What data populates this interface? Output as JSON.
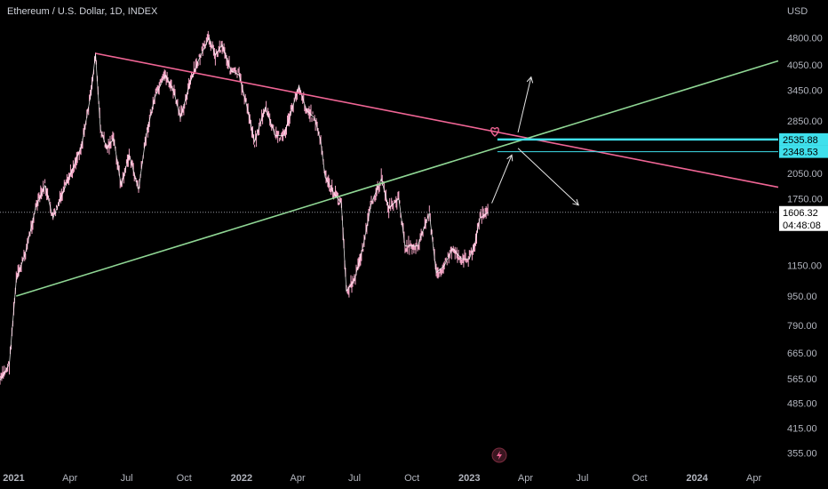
{
  "header": {
    "title": "Ethereum / U.S. Dollar, 1D, INDEX"
  },
  "chart_data": {
    "type": "candlestick",
    "currency_label": "USD",
    "y_scale": "log",
    "ylim": [
      335,
      5200
    ],
    "y_ticks": [
      4800,
      4050,
      3450,
      2850,
      2350,
      2050,
      1750,
      1150,
      950,
      790,
      665,
      565,
      485,
      415,
      355
    ],
    "y_tick_labels": [
      "4800.00",
      "4050.00",
      "3450.00",
      "2850.00",
      "2350.00",
      "2050.00",
      "1750.00",
      "1150.00",
      "950.00",
      "790.00",
      "665.00",
      "565.00",
      "485.00",
      "415.00",
      "355.00"
    ],
    "x_range": [
      "2020-12-10",
      "2024-05-10"
    ],
    "x_ticks": [
      {
        "date": "2021-01-01",
        "label": "2021",
        "bold": true
      },
      {
        "date": "2021-04-01",
        "label": "Apr",
        "bold": false
      },
      {
        "date": "2021-07-01",
        "label": "Jul",
        "bold": false
      },
      {
        "date": "2021-10-01",
        "label": "Oct",
        "bold": false
      },
      {
        "date": "2022-01-01",
        "label": "2022",
        "bold": true
      },
      {
        "date": "2022-04-01",
        "label": "Apr",
        "bold": false
      },
      {
        "date": "2022-07-01",
        "label": "Jul",
        "bold": false
      },
      {
        "date": "2022-10-01",
        "label": "Oct",
        "bold": false
      },
      {
        "date": "2023-01-01",
        "label": "2023",
        "bold": true
      },
      {
        "date": "2023-04-01",
        "label": "Apr",
        "bold": false
      },
      {
        "date": "2023-07-01",
        "label": "Jul",
        "bold": false
      },
      {
        "date": "2023-10-01",
        "label": "Oct",
        "bold": false
      },
      {
        "date": "2024-01-01",
        "label": "2024",
        "bold": true
      },
      {
        "date": "2024-04-01",
        "label": "Apr",
        "bold": false
      }
    ],
    "series": [
      {
        "type": "price_path",
        "values": [
          [
            "2020-12-10",
            560
          ],
          [
            "2020-12-25",
            620
          ],
          [
            "2021-01-05",
            1050
          ],
          [
            "2021-01-20",
            1250
          ],
          [
            "2021-02-05",
            1650
          ],
          [
            "2021-02-20",
            1900
          ],
          [
            "2021-03-05",
            1550
          ],
          [
            "2021-03-20",
            1800
          ],
          [
            "2021-04-05",
            2100
          ],
          [
            "2021-04-20",
            2450
          ],
          [
            "2021-05-05",
            3400
          ],
          [
            "2021-05-12",
            4350
          ],
          [
            "2021-05-20",
            2700
          ],
          [
            "2021-05-30",
            2400
          ],
          [
            "2021-06-10",
            2550
          ],
          [
            "2021-06-22",
            1900
          ],
          [
            "2021-07-05",
            2300
          ],
          [
            "2021-07-20",
            1850
          ],
          [
            "2021-08-01",
            2600
          ],
          [
            "2021-08-15",
            3300
          ],
          [
            "2021-09-01",
            3800
          ],
          [
            "2021-09-15",
            3400
          ],
          [
            "2021-09-25",
            2900
          ],
          [
            "2021-10-10",
            3600
          ],
          [
            "2021-10-25",
            4200
          ],
          [
            "2021-11-10",
            4800
          ],
          [
            "2021-11-20",
            4300
          ],
          [
            "2021-12-01",
            4600
          ],
          [
            "2021-12-15",
            3900
          ],
          [
            "2021-12-28",
            3800
          ],
          [
            "2022-01-10",
            3100
          ],
          [
            "2022-01-22",
            2500
          ],
          [
            "2022-02-08",
            3100
          ],
          [
            "2022-02-24",
            2600
          ],
          [
            "2022-03-10",
            2600
          ],
          [
            "2022-03-25",
            3150
          ],
          [
            "2022-04-03",
            3550
          ],
          [
            "2022-04-15",
            3050
          ],
          [
            "2022-04-28",
            2900
          ],
          [
            "2022-05-08",
            2500
          ],
          [
            "2022-05-15",
            2000
          ],
          [
            "2022-05-30",
            1800
          ],
          [
            "2022-06-10",
            1700
          ],
          [
            "2022-06-18",
            980
          ],
          [
            "2022-07-01",
            1050
          ],
          [
            "2022-07-15",
            1300
          ],
          [
            "2022-07-28",
            1700
          ],
          [
            "2022-08-13",
            1980
          ],
          [
            "2022-08-25",
            1650
          ],
          [
            "2022-09-10",
            1750
          ],
          [
            "2022-09-20",
            1300
          ],
          [
            "2022-10-10",
            1300
          ],
          [
            "2022-10-29",
            1600
          ],
          [
            "2022-11-09",
            1100
          ],
          [
            "2022-11-22",
            1150
          ],
          [
            "2022-12-05",
            1280
          ],
          [
            "2022-12-20",
            1200
          ],
          [
            "2023-01-01",
            1200
          ],
          [
            "2023-01-10",
            1320
          ],
          [
            "2023-01-18",
            1550
          ],
          [
            "2023-02-01",
            1606.32
          ]
        ]
      }
    ],
    "trendlines": [
      {
        "name": "descending",
        "color": "#f06595",
        "from": [
          "2021-05-12",
          4350
        ],
        "to": [
          "2024-05-10",
          1880
        ]
      },
      {
        "name": "ascending",
        "color": "#8fd694",
        "from": [
          "2021-01-05",
          950
        ],
        "to": [
          "2024-05-10",
          4150
        ]
      }
    ],
    "levels": [
      {
        "value": 2535.88,
        "label": "2535.88",
        "color": "#3fe0ec"
      },
      {
        "value": 2348.53,
        "label": "2348.53",
        "color": "#3fe0ec"
      },
      {
        "value": 1606.32,
        "label": "1606.32",
        "color": "#ffffff",
        "countdown": "04:48:08"
      }
    ],
    "arrows": [
      {
        "from": [
          "2023-03-20",
          2650
        ],
        "to": [
          "2023-04-10",
          3750
        ]
      },
      {
        "from": [
          "2023-03-20",
          2400
        ],
        "to": [
          "2023-06-25",
          1680
        ]
      },
      {
        "from": [
          "2023-02-06",
          1700
        ],
        "to": [
          "2023-03-10",
          2300
        ]
      }
    ]
  },
  "icons": {
    "heart": "heart-icon",
    "lightning": "lightning-icon"
  }
}
